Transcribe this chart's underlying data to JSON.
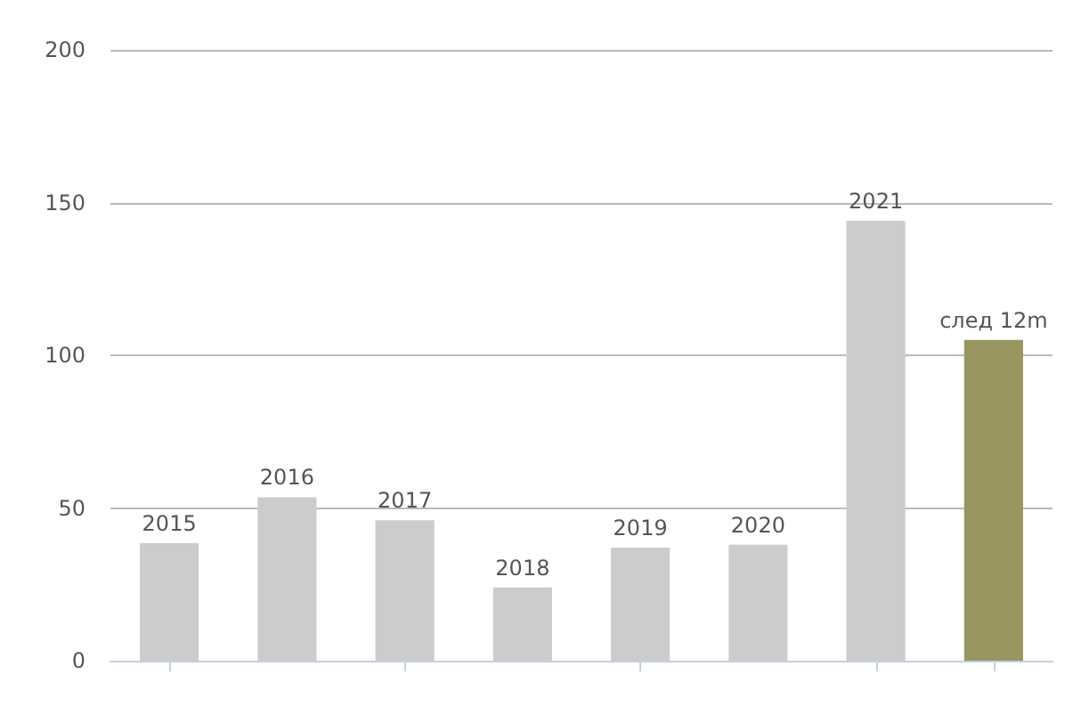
{
  "chart_data": {
    "type": "bar",
    "categories": [
      "2015",
      "2016",
      "2017",
      "2018",
      "2019",
      "2020",
      "2021",
      "след 12m"
    ],
    "values": [
      38.5,
      53.5,
      46,
      24,
      37,
      38,
      144,
      105
    ],
    "colors": [
      "#cccccc",
      "#cccccc",
      "#cccccc",
      "#cccccc",
      "#cccccc",
      "#cccccc",
      "#cccccc",
      "#999662"
    ],
    "ylim": [
      0,
      200
    ],
    "yticks": [
      0,
      50,
      100,
      150,
      200
    ],
    "grid": "y"
  }
}
